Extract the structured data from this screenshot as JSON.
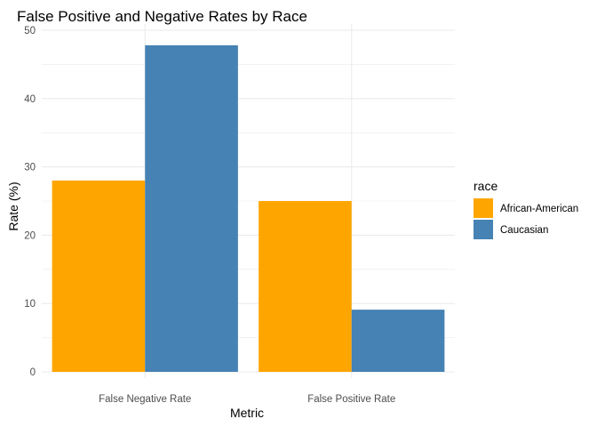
{
  "chart_data": {
    "type": "bar",
    "title": "False Positive and Negative Rates by Race",
    "xlabel": "Metric",
    "ylabel": "Rate (%)",
    "categories": [
      "False Negative Rate",
      "False Positive Rate"
    ],
    "series": [
      {
        "name": "African-American",
        "color": "#FFA500",
        "values": [
          28.0,
          25.0
        ]
      },
      {
        "name": "Caucasian",
        "color": "#4682B4",
        "values": [
          47.8,
          9.1
        ]
      }
    ],
    "ylim": [
      0,
      50
    ],
    "yticks": [
      0,
      10,
      20,
      30,
      40,
      50
    ],
    "legend": {
      "title": "race",
      "placement": "right"
    },
    "grid": true,
    "colors": {
      "grid": "#ebebeb",
      "background": "#ffffff"
    }
  }
}
